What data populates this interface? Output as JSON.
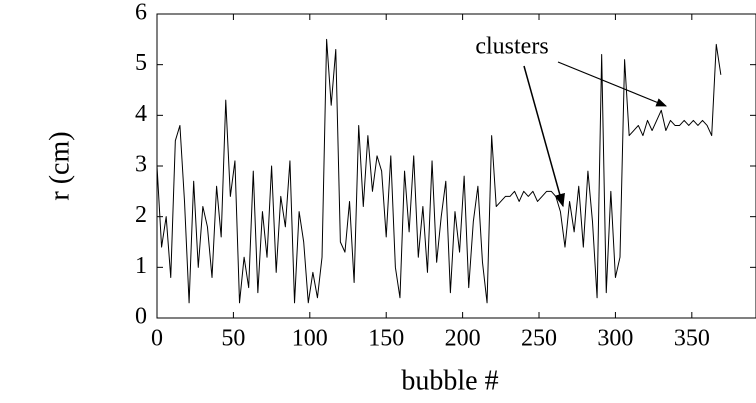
{
  "chart_data": {
    "type": "line",
    "xlabel": "bubble #",
    "ylabel": "r (cm)",
    "annotation": "clusters",
    "x": [
      0,
      3,
      6,
      9,
      12,
      15,
      18,
      21,
      24,
      27,
      30,
      33,
      36,
      39,
      42,
      45,
      48,
      51,
      54,
      57,
      60,
      63,
      66,
      69,
      72,
      75,
      78,
      81,
      84,
      87,
      90,
      93,
      96,
      99,
      102,
      105,
      108,
      111,
      114,
      117,
      120,
      123,
      126,
      129,
      132,
      135,
      138,
      141,
      144,
      147,
      150,
      153,
      156,
      159,
      162,
      165,
      168,
      171,
      174,
      177,
      180,
      183,
      186,
      189,
      192,
      195,
      198,
      201,
      204,
      207,
      210,
      213,
      216,
      219,
      222,
      225,
      228,
      231,
      234,
      237,
      240,
      243,
      246,
      249,
      252,
      255,
      258,
      261,
      264,
      267,
      270,
      273,
      276,
      279,
      282,
      285,
      288,
      291,
      294,
      297,
      300,
      303,
      306,
      309,
      312,
      315,
      318,
      321,
      324,
      327,
      330,
      333,
      336,
      339,
      342,
      345,
      348,
      351,
      354,
      357,
      360,
      363,
      366,
      369
    ],
    "series": [
      {
        "color": "#000000",
        "values": [
          3.0,
          1.4,
          2.0,
          0.8,
          3.5,
          3.8,
          2.3,
          0.3,
          2.7,
          1.0,
          2.2,
          1.8,
          0.8,
          2.6,
          1.6,
          4.3,
          2.4,
          3.1,
          0.3,
          1.2,
          0.6,
          2.9,
          0.5,
          2.1,
          1.2,
          3.0,
          0.9,
          2.4,
          1.8,
          3.1,
          0.3,
          2.1,
          1.5,
          0.3,
          0.9,
          0.4,
          1.2,
          5.5,
          4.2,
          5.3,
          1.5,
          1.3,
          2.3,
          0.7,
          3.8,
          2.2,
          3.6,
          2.5,
          3.2,
          2.9,
          1.6,
          3.2,
          1.0,
          0.4,
          2.9,
          1.7,
          3.2,
          1.2,
          2.2,
          0.9,
          3.1,
          1.1,
          2.0,
          2.7,
          0.5,
          2.1,
          1.3,
          2.8,
          0.6,
          1.9,
          2.6,
          1.1,
          0.3,
          3.6,
          2.2,
          2.3,
          2.4,
          2.4,
          2.5,
          2.3,
          2.5,
          2.4,
          2.5,
          2.3,
          2.4,
          2.5,
          2.5,
          2.4,
          2.1,
          1.4,
          2.3,
          1.7,
          2.6,
          1.4,
          2.9,
          1.9,
          0.4,
          5.2,
          0.5,
          2.5,
          0.8,
          1.2,
          5.1,
          3.6,
          3.7,
          3.8,
          3.6,
          3.9,
          3.7,
          3.9,
          4.1,
          3.7,
          3.9,
          3.8,
          3.8,
          3.9,
          3.8,
          3.9,
          3.8,
          3.9,
          3.8,
          3.6,
          5.4,
          4.8
        ]
      }
    ],
    "xlim": [
      0,
      392
    ],
    "ylim": [
      0,
      6
    ],
    "xticks": [
      0,
      50,
      100,
      150,
      200,
      250,
      300,
      350
    ],
    "yticks": [
      0,
      1,
      2,
      3,
      4,
      5,
      6
    ]
  }
}
